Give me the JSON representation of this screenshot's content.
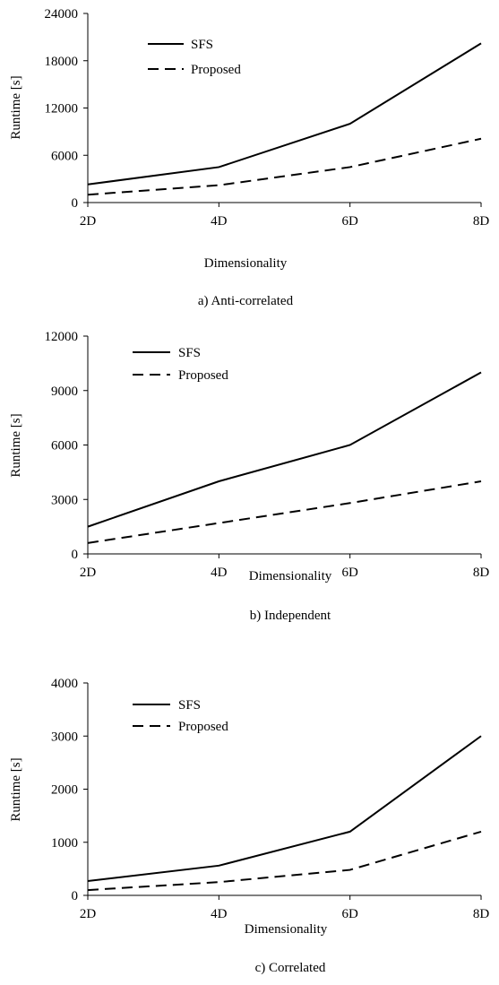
{
  "chart_data": [
    {
      "type": "line",
      "caption": "a) Anti-correlated",
      "xlabel": "Dimensionality",
      "ylabel": "Runtime [s]",
      "categories": [
        "2D",
        "4D",
        "6D",
        "8D"
      ],
      "ylim": [
        0,
        24000
      ],
      "yticks": [
        "0",
        "6000",
        "12000",
        "18000",
        "24000"
      ],
      "legend_position": "top-left",
      "grid": false,
      "series": [
        {
          "name": "SFS",
          "style": "solid",
          "values": [
            2300,
            4500,
            10000,
            20200
          ]
        },
        {
          "name": "Proposed",
          "style": "dashed",
          "values": [
            1000,
            2200,
            4500,
            8100
          ]
        }
      ]
    },
    {
      "type": "line",
      "caption": "b) Independent",
      "xlabel": "Dimensionality",
      "ylabel": "Runtime [s]",
      "categories": [
        "2D",
        "4D",
        "6D",
        "8D"
      ],
      "ylim": [
        0,
        12000
      ],
      "yticks": [
        "0",
        "3000",
        "6000",
        "9000",
        "12000"
      ],
      "legend_position": "top-left",
      "grid": false,
      "series": [
        {
          "name": "SFS",
          "style": "solid",
          "values": [
            1500,
            4000,
            6000,
            10000
          ]
        },
        {
          "name": "Proposed",
          "style": "dashed",
          "values": [
            600,
            1700,
            2800,
            4000
          ]
        }
      ]
    },
    {
      "type": "line",
      "caption": "c) Correlated",
      "xlabel": "Dimensionality",
      "ylabel": "Runtime [s]",
      "categories": [
        "2D",
        "4D",
        "6D",
        "8D"
      ],
      "ylim": [
        0,
        4000
      ],
      "yticks": [
        "0",
        "1000",
        "2000",
        "3000",
        "4000"
      ],
      "legend_position": "top-left",
      "grid": false,
      "series": [
        {
          "name": "SFS",
          "style": "solid",
          "values": [
            270,
            560,
            1200,
            3000
          ]
        },
        {
          "name": "Proposed",
          "style": "dashed",
          "values": [
            100,
            250,
            480,
            1200
          ]
        }
      ]
    }
  ]
}
